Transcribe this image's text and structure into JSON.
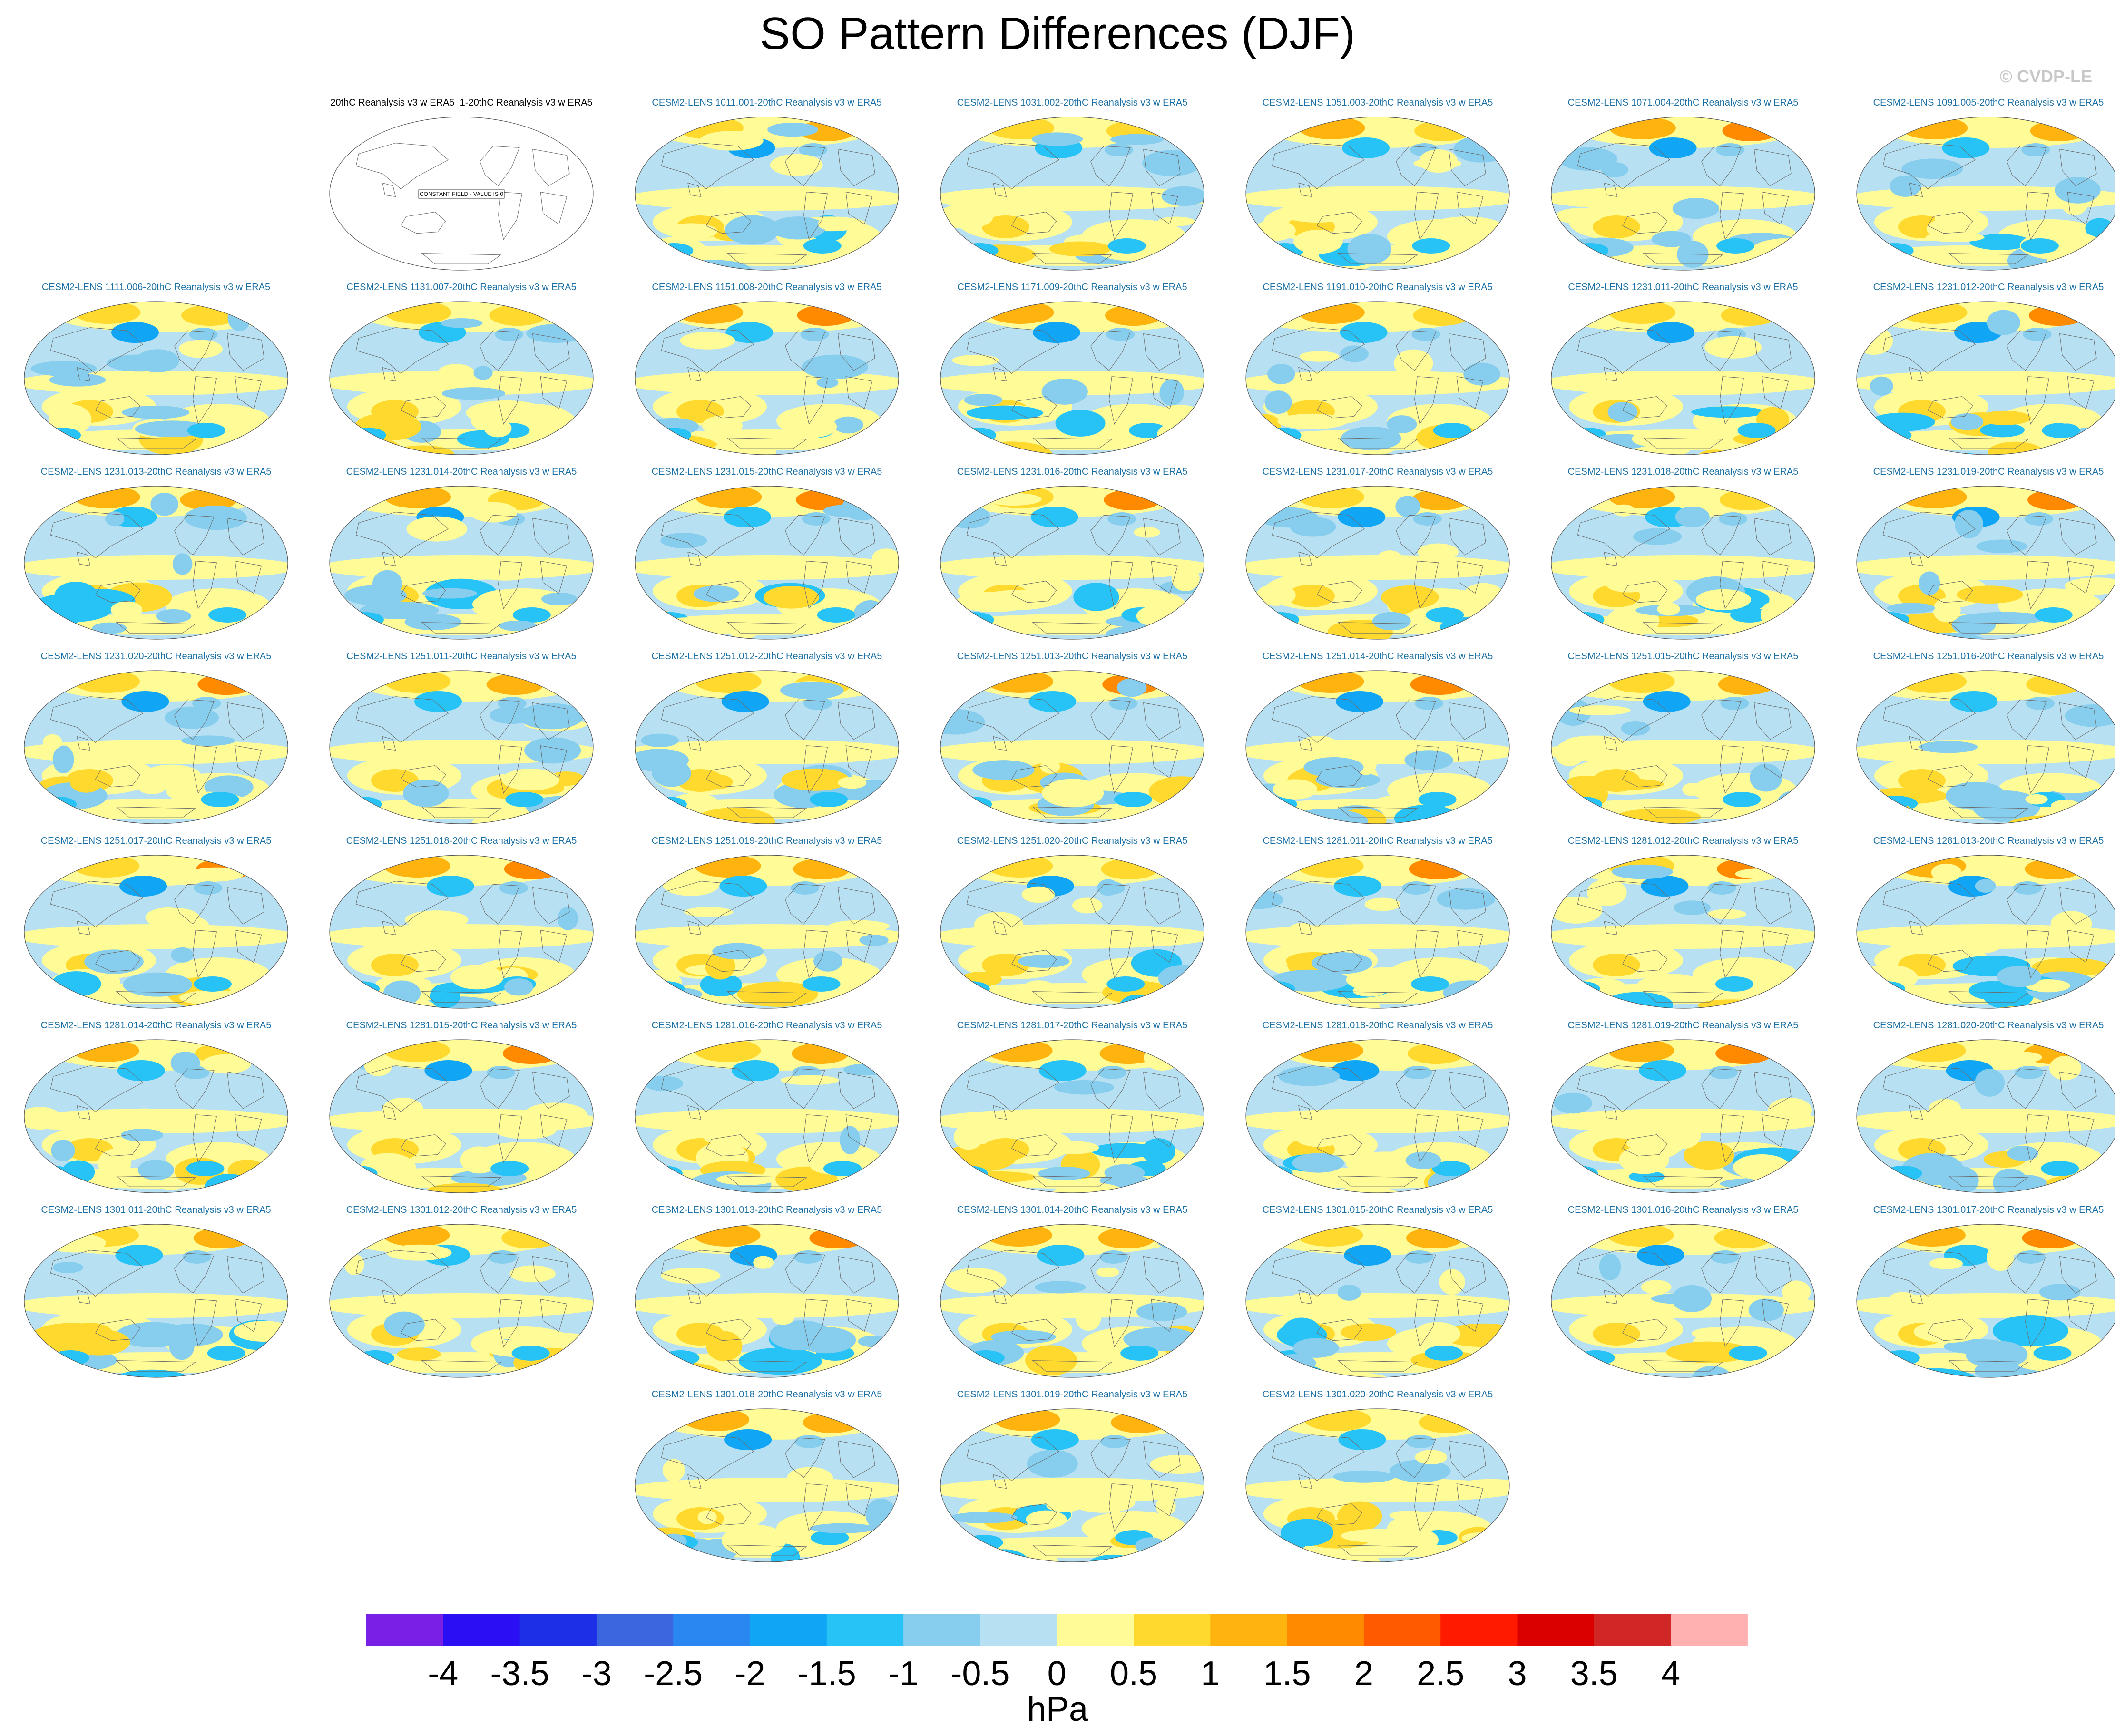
{
  "title": "SO Pattern Differences (DJF)",
  "credit": "© CVDP-LE",
  "chart_data": {
    "type": "heatmap",
    "title": "SO Pattern Differences (DJF)",
    "description_units": "hPa",
    "colorbar": {
      "label": "hPa",
      "tick_labels": [
        "-4",
        "-3.5",
        "-3",
        "-2.5",
        "-2",
        "-1.5",
        "-1",
        "-0.5",
        "0",
        "0.5",
        "1",
        "1.5",
        "2",
        "2.5",
        "3",
        "3.5",
        "4"
      ],
      "colors": [
        "#7a1fe6",
        "#2a0ef4",
        "#1e2fe8",
        "#3a67e0",
        "#2a86f0",
        "#11a6f5",
        "#27c2f6",
        "#86cdee",
        "#b7e1f2",
        "#fffb96",
        "#ffd92e",
        "#ffb30f",
        "#ff8a00",
        "#ff5a00",
        "#ff1a00",
        "#da0000",
        "#d12626",
        "#ffb0b0"
      ]
    },
    "panels": [
      {
        "title": "20thC Reanalysis v3 w ERA5_1-20thC Reanalysis v3 w ERA5",
        "note": "CONSTANT FIELD - VALUE IS 0",
        "reference": true
      },
      {
        "title": "CESM2-LENS 1011.001-20thC Reanalysis v3 w ERA5"
      },
      {
        "title": "CESM2-LENS 1031.002-20thC Reanalysis v3 w ERA5"
      },
      {
        "title": "CESM2-LENS 1051.003-20thC Reanalysis v3 w ERA5"
      },
      {
        "title": "CESM2-LENS 1071.004-20thC Reanalysis v3 w ERA5"
      },
      {
        "title": "CESM2-LENS 1091.005-20thC Reanalysis v3 w ERA5"
      },
      {
        "title": "CESM2-LENS 1111.006-20thC Reanalysis v3 w ERA5"
      },
      {
        "title": "CESM2-LENS 1131.007-20thC Reanalysis v3 w ERA5"
      },
      {
        "title": "CESM2-LENS 1151.008-20thC Reanalysis v3 w ERA5"
      },
      {
        "title": "CESM2-LENS 1171.009-20thC Reanalysis v3 w ERA5"
      },
      {
        "title": "CESM2-LENS 1191.010-20thC Reanalysis v3 w ERA5"
      },
      {
        "title": "CESM2-LENS 1231.011-20thC Reanalysis v3 w ERA5"
      },
      {
        "title": "CESM2-LENS 1231.012-20thC Reanalysis v3 w ERA5"
      },
      {
        "title": "CESM2-LENS 1231.013-20thC Reanalysis v3 w ERA5"
      },
      {
        "title": "CESM2-LENS 1231.014-20thC Reanalysis v3 w ERA5"
      },
      {
        "title": "CESM2-LENS 1231.015-20thC Reanalysis v3 w ERA5"
      },
      {
        "title": "CESM2-LENS 1231.016-20thC Reanalysis v3 w ERA5"
      },
      {
        "title": "CESM2-LENS 1231.017-20thC Reanalysis v3 w ERA5"
      },
      {
        "title": "CESM2-LENS 1231.018-20thC Reanalysis v3 w ERA5"
      },
      {
        "title": "CESM2-LENS 1231.019-20thC Reanalysis v3 w ERA5"
      },
      {
        "title": "CESM2-LENS 1231.020-20thC Reanalysis v3 w ERA5"
      },
      {
        "title": "CESM2-LENS 1251.011-20thC Reanalysis v3 w ERA5"
      },
      {
        "title": "CESM2-LENS 1251.012-20thC Reanalysis v3 w ERA5"
      },
      {
        "title": "CESM2-LENS 1251.013-20thC Reanalysis v3 w ERA5"
      },
      {
        "title": "CESM2-LENS 1251.014-20thC Reanalysis v3 w ERA5"
      },
      {
        "title": "CESM2-LENS 1251.015-20thC Reanalysis v3 w ERA5"
      },
      {
        "title": "CESM2-LENS 1251.016-20thC Reanalysis v3 w ERA5"
      },
      {
        "title": "CESM2-LENS 1251.017-20thC Reanalysis v3 w ERA5"
      },
      {
        "title": "CESM2-LENS 1251.018-20thC Reanalysis v3 w ERA5"
      },
      {
        "title": "CESM2-LENS 1251.019-20thC Reanalysis v3 w ERA5"
      },
      {
        "title": "CESM2-LENS 1251.020-20thC Reanalysis v3 w ERA5"
      },
      {
        "title": "CESM2-LENS 1281.011-20thC Reanalysis v3 w ERA5"
      },
      {
        "title": "CESM2-LENS 1281.012-20thC Reanalysis v3 w ERA5"
      },
      {
        "title": "CESM2-LENS 1281.013-20thC Reanalysis v3 w ERA5"
      },
      {
        "title": "CESM2-LENS 1281.014-20thC Reanalysis v3 w ERA5"
      },
      {
        "title": "CESM2-LENS 1281.015-20thC Reanalysis v3 w ERA5"
      },
      {
        "title": "CESM2-LENS 1281.016-20thC Reanalysis v3 w ERA5"
      },
      {
        "title": "CESM2-LENS 1281.017-20thC Reanalysis v3 w ERA5"
      },
      {
        "title": "CESM2-LENS 1281.018-20thC Reanalysis v3 w ERA5"
      },
      {
        "title": "CESM2-LENS 1281.019-20thC Reanalysis v3 w ERA5"
      },
      {
        "title": "CESM2-LENS 1281.020-20thC Reanalysis v3 w ERA5"
      },
      {
        "title": "CESM2-LENS 1301.011-20thC Reanalysis v3 w ERA5"
      },
      {
        "title": "CESM2-LENS 1301.012-20thC Reanalysis v3 w ERA5"
      },
      {
        "title": "CESM2-LENS 1301.013-20thC Reanalysis v3 w ERA5"
      },
      {
        "title": "CESM2-LENS 1301.014-20thC Reanalysis v3 w ERA5"
      },
      {
        "title": "CESM2-LENS 1301.015-20thC Reanalysis v3 w ERA5"
      },
      {
        "title": "CESM2-LENS 1301.016-20thC Reanalysis v3 w ERA5"
      },
      {
        "title": "CESM2-LENS 1301.017-20thC Reanalysis v3 w ERA5"
      },
      {
        "title": "CESM2-LENS 1301.018-20thC Reanalysis v3 w ERA5"
      },
      {
        "title": "CESM2-LENS 1301.019-20thC Reanalysis v3 w ERA5"
      },
      {
        "title": "CESM2-LENS 1301.020-20thC Reanalysis v3 w ERA5"
      }
    ]
  }
}
